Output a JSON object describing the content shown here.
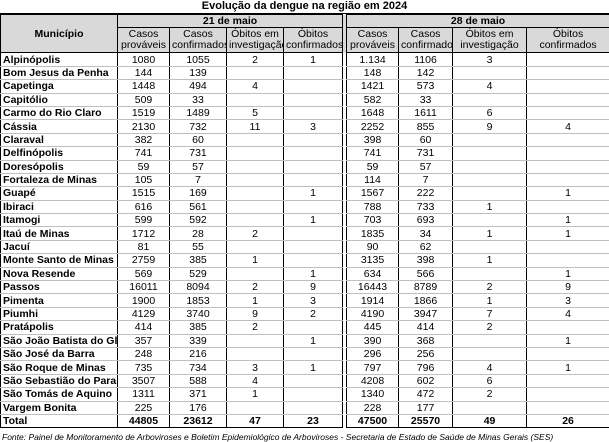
{
  "title": "Evolução da dengue na região em 2024",
  "headers": {
    "municipio": "Município",
    "date1": "21 de maio",
    "date2": "28 de maio",
    "casos_provaveis": "Casos prováveis",
    "casos_confirmados": "Casos confirmados",
    "obitos_investigacao": "Óbitos em investigação",
    "obitos_confirmados": "Óbitos confirmados"
  },
  "rows": [
    {
      "m": "Alpinópolis",
      "a": [
        "1080",
        "1055",
        "2",
        "1"
      ],
      "b": [
        "1.134",
        "1106",
        "3",
        ""
      ]
    },
    {
      "m": "Bom Jesus da Penha",
      "a": [
        "144",
        "139",
        "",
        ""
      ],
      "b": [
        "148",
        "142",
        "",
        ""
      ]
    },
    {
      "m": "Capetinga",
      "a": [
        "1448",
        "494",
        "4",
        ""
      ],
      "b": [
        "1421",
        "573",
        "4",
        ""
      ]
    },
    {
      "m": "Capitólio",
      "a": [
        "509",
        "33",
        "",
        ""
      ],
      "b": [
        "582",
        "33",
        "",
        ""
      ]
    },
    {
      "m": "Carmo do Rio Claro",
      "a": [
        "1519",
        "1489",
        "5",
        ""
      ],
      "b": [
        "1648",
        "1611",
        "6",
        ""
      ]
    },
    {
      "m": "Cássia",
      "a": [
        "2130",
        "732",
        "11",
        "3"
      ],
      "b": [
        "2252",
        "855",
        "9",
        "4"
      ]
    },
    {
      "m": "Claraval",
      "a": [
        "382",
        "60",
        "",
        ""
      ],
      "b": [
        "398",
        "60",
        "",
        ""
      ]
    },
    {
      "m": "Delfinópolis",
      "a": [
        "741",
        "731",
        "",
        ""
      ],
      "b": [
        "741",
        "731",
        "",
        ""
      ]
    },
    {
      "m": "Doresópolis",
      "a": [
        "59",
        "57",
        "",
        ""
      ],
      "b": [
        "59",
        "57",
        "",
        ""
      ]
    },
    {
      "m": "Fortaleza de Minas",
      "a": [
        "105",
        "7",
        "",
        ""
      ],
      "b": [
        "114",
        "7",
        "",
        ""
      ]
    },
    {
      "m": "Guapé",
      "a": [
        "1515",
        "169",
        "",
        "1"
      ],
      "b": [
        "1567",
        "222",
        "",
        "1"
      ]
    },
    {
      "m": "Ibiraci",
      "a": [
        "616",
        "561",
        "",
        ""
      ],
      "b": [
        "788",
        "733",
        "1",
        ""
      ]
    },
    {
      "m": "Itamogi",
      "a": [
        "599",
        "592",
        "",
        "1"
      ],
      "b": [
        "703",
        "693",
        "",
        "1"
      ]
    },
    {
      "m": "Itaú de Minas",
      "a": [
        "1712",
        "28",
        "2",
        ""
      ],
      "b": [
        "1835",
        "34",
        "1",
        "1"
      ]
    },
    {
      "m": "Jacuí",
      "a": [
        "81",
        "55",
        "",
        ""
      ],
      "b": [
        "90",
        "62",
        "",
        ""
      ]
    },
    {
      "m": "Monte Santo de Minas",
      "a": [
        "2759",
        "385",
        "1",
        ""
      ],
      "b": [
        "3135",
        "398",
        "1",
        ""
      ]
    },
    {
      "m": "Nova Resende",
      "a": [
        "569",
        "529",
        "",
        "1"
      ],
      "b": [
        "634",
        "566",
        "",
        "1"
      ]
    },
    {
      "m": "Passos",
      "a": [
        "16011",
        "8094",
        "2",
        "9"
      ],
      "b": [
        "16443",
        "8789",
        "2",
        "9"
      ]
    },
    {
      "m": "Pimenta",
      "a": [
        "1900",
        "1853",
        "1",
        "3"
      ],
      "b": [
        "1914",
        "1866",
        "1",
        "3"
      ]
    },
    {
      "m": "Piumhi",
      "a": [
        "4129",
        "3740",
        "9",
        "2"
      ],
      "b": [
        "4190",
        "3947",
        "7",
        "4"
      ]
    },
    {
      "m": "Pratápolis",
      "a": [
        "414",
        "385",
        "2",
        ""
      ],
      "b": [
        "445",
        "414",
        "2",
        ""
      ]
    },
    {
      "m": "São João Batista do Glória",
      "a": [
        "357",
        "339",
        "",
        "1"
      ],
      "b": [
        "390",
        "368",
        "",
        "1"
      ]
    },
    {
      "m": "São José da Barra",
      "a": [
        "248",
        "216",
        "",
        ""
      ],
      "b": [
        "296",
        "256",
        "",
        ""
      ]
    },
    {
      "m": "São Roque de Minas",
      "a": [
        "735",
        "734",
        "3",
        "1"
      ],
      "b": [
        "797",
        "796",
        "4",
        "1"
      ]
    },
    {
      "m": "São Sebastião do Paraíso",
      "a": [
        "3507",
        "588",
        "4",
        ""
      ],
      "b": [
        "4208",
        "602",
        "6",
        ""
      ]
    },
    {
      "m": "São Tomás de Aquino",
      "a": [
        "1311",
        "371",
        "1",
        ""
      ],
      "b": [
        "1340",
        "472",
        "2",
        ""
      ]
    },
    {
      "m": "Vargem Bonita",
      "a": [
        "225",
        "176",
        "",
        ""
      ],
      "b": [
        "228",
        "177",
        "",
        ""
      ]
    }
  ],
  "total": {
    "label": "Total",
    "a": [
      "44805",
      "23612",
      "47",
      "23"
    ],
    "b": [
      "47500",
      "25570",
      "49",
      "26"
    ]
  },
  "source": "Fonte: Painel de Monitoramento de Arboviroses e Boletim Epidemiológico de Arboviroses - Secretaria de Estado de Saúde de Minas Gerais (SES)"
}
